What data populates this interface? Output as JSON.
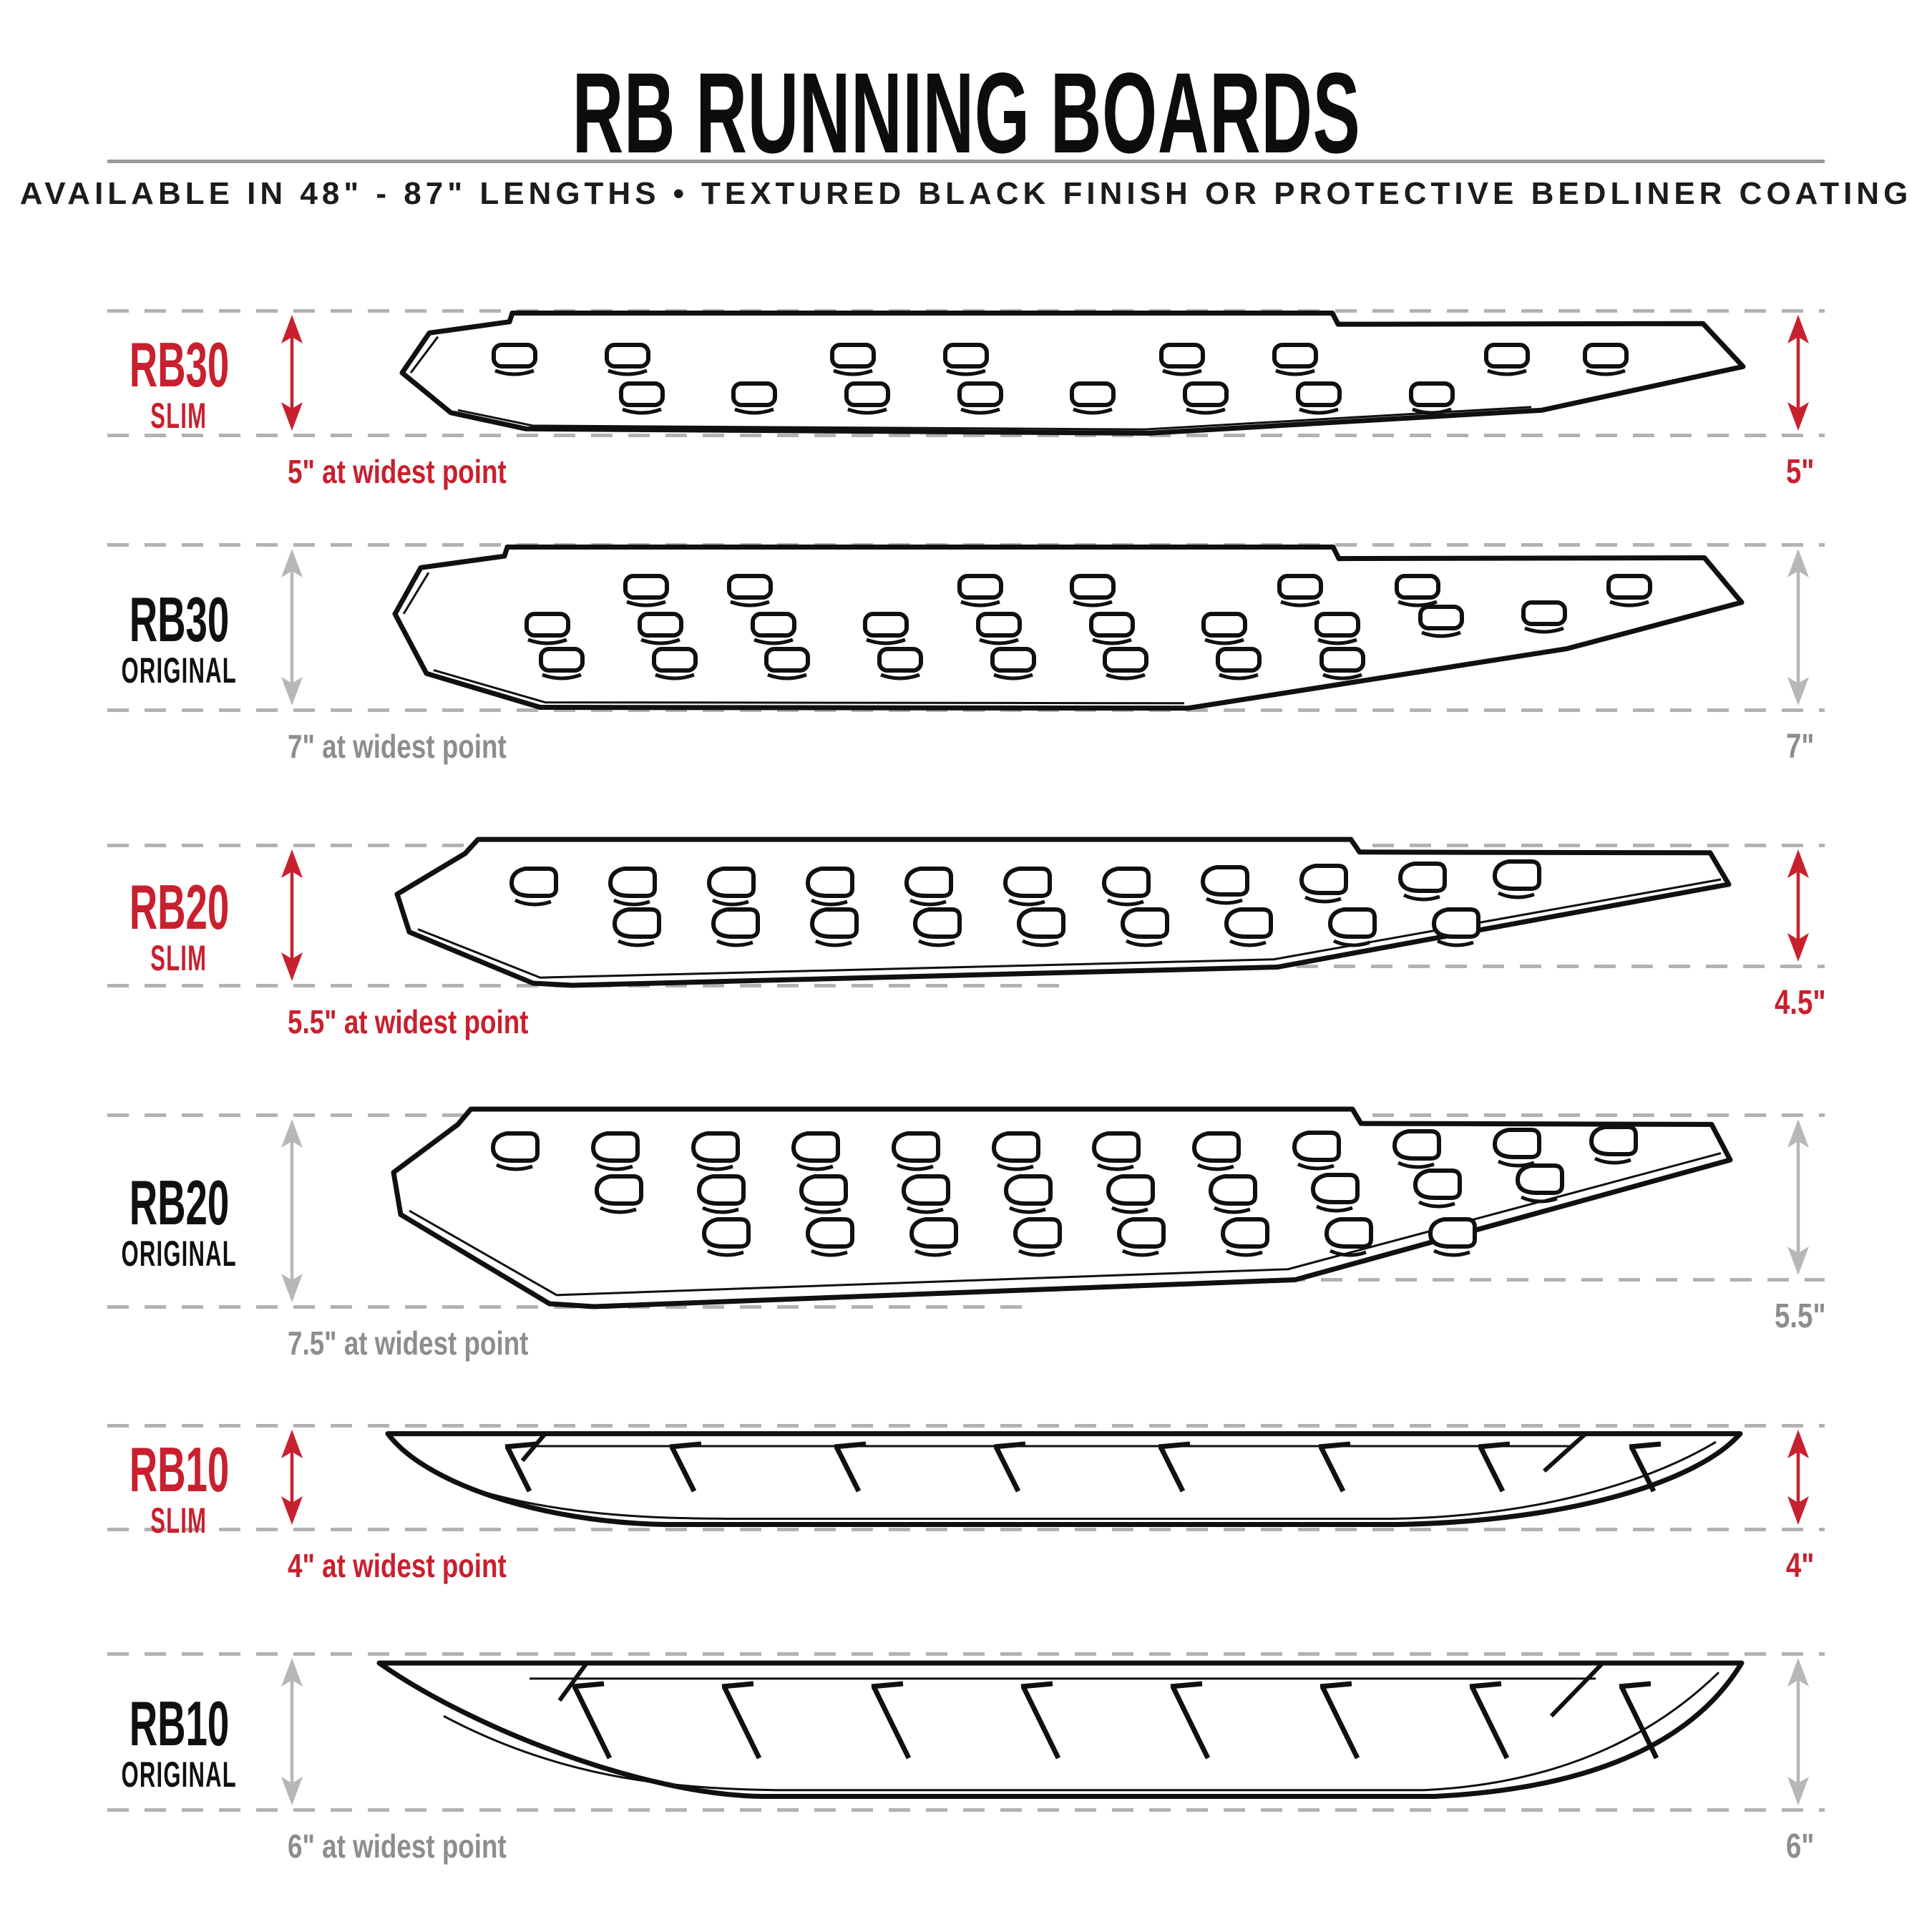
{
  "header": {
    "title": "RB RUNNING BOARDS",
    "subtitle_left": "AVAILABLE IN 48\" - 87\" LENGTHS",
    "subtitle_bullet": "•",
    "subtitle_right": "TEXTURED BLACK FINISH OR PROTECTIVE BEDLINER COATING"
  },
  "colors": {
    "accent_red": "#c8202e",
    "gray_text": "#8d8d8d",
    "gray_arrow": "#b7b7b7",
    "dash_gray": "#b2b2b2",
    "ink": "#101010"
  },
  "rows": [
    {
      "id": "rb30-slim",
      "model": "RB30",
      "variant": "SLIM",
      "theme": "red",
      "caption": "5\" at widest point",
      "right_value": "5\"",
      "board": "rb30-slim"
    },
    {
      "id": "rb30-original",
      "model": "RB30",
      "variant": "ORIGINAL",
      "theme": "gray",
      "caption": "7\" at widest point",
      "right_value": "7\"",
      "board": "rb30-original"
    },
    {
      "id": "rb20-slim",
      "model": "RB20",
      "variant": "SLIM",
      "theme": "red",
      "caption": "5.5\" at widest point",
      "right_value": "4.5\"",
      "board": "rb20-slim"
    },
    {
      "id": "rb20-original",
      "model": "RB20",
      "variant": "ORIGINAL",
      "theme": "gray",
      "caption": "7.5\" at widest point",
      "right_value": "5.5\"",
      "board": "rb20-original"
    },
    {
      "id": "rb10-slim",
      "model": "RB10",
      "variant": "SLIM",
      "theme": "red",
      "caption": "4\" at widest point",
      "right_value": "4\"",
      "board": "rb10-slim"
    },
    {
      "id": "rb10-original",
      "model": "RB10",
      "variant": "ORIGINAL",
      "theme": "gray",
      "caption": "6\" at widest point",
      "right_value": "6\"",
      "board": "rb10-original"
    }
  ]
}
